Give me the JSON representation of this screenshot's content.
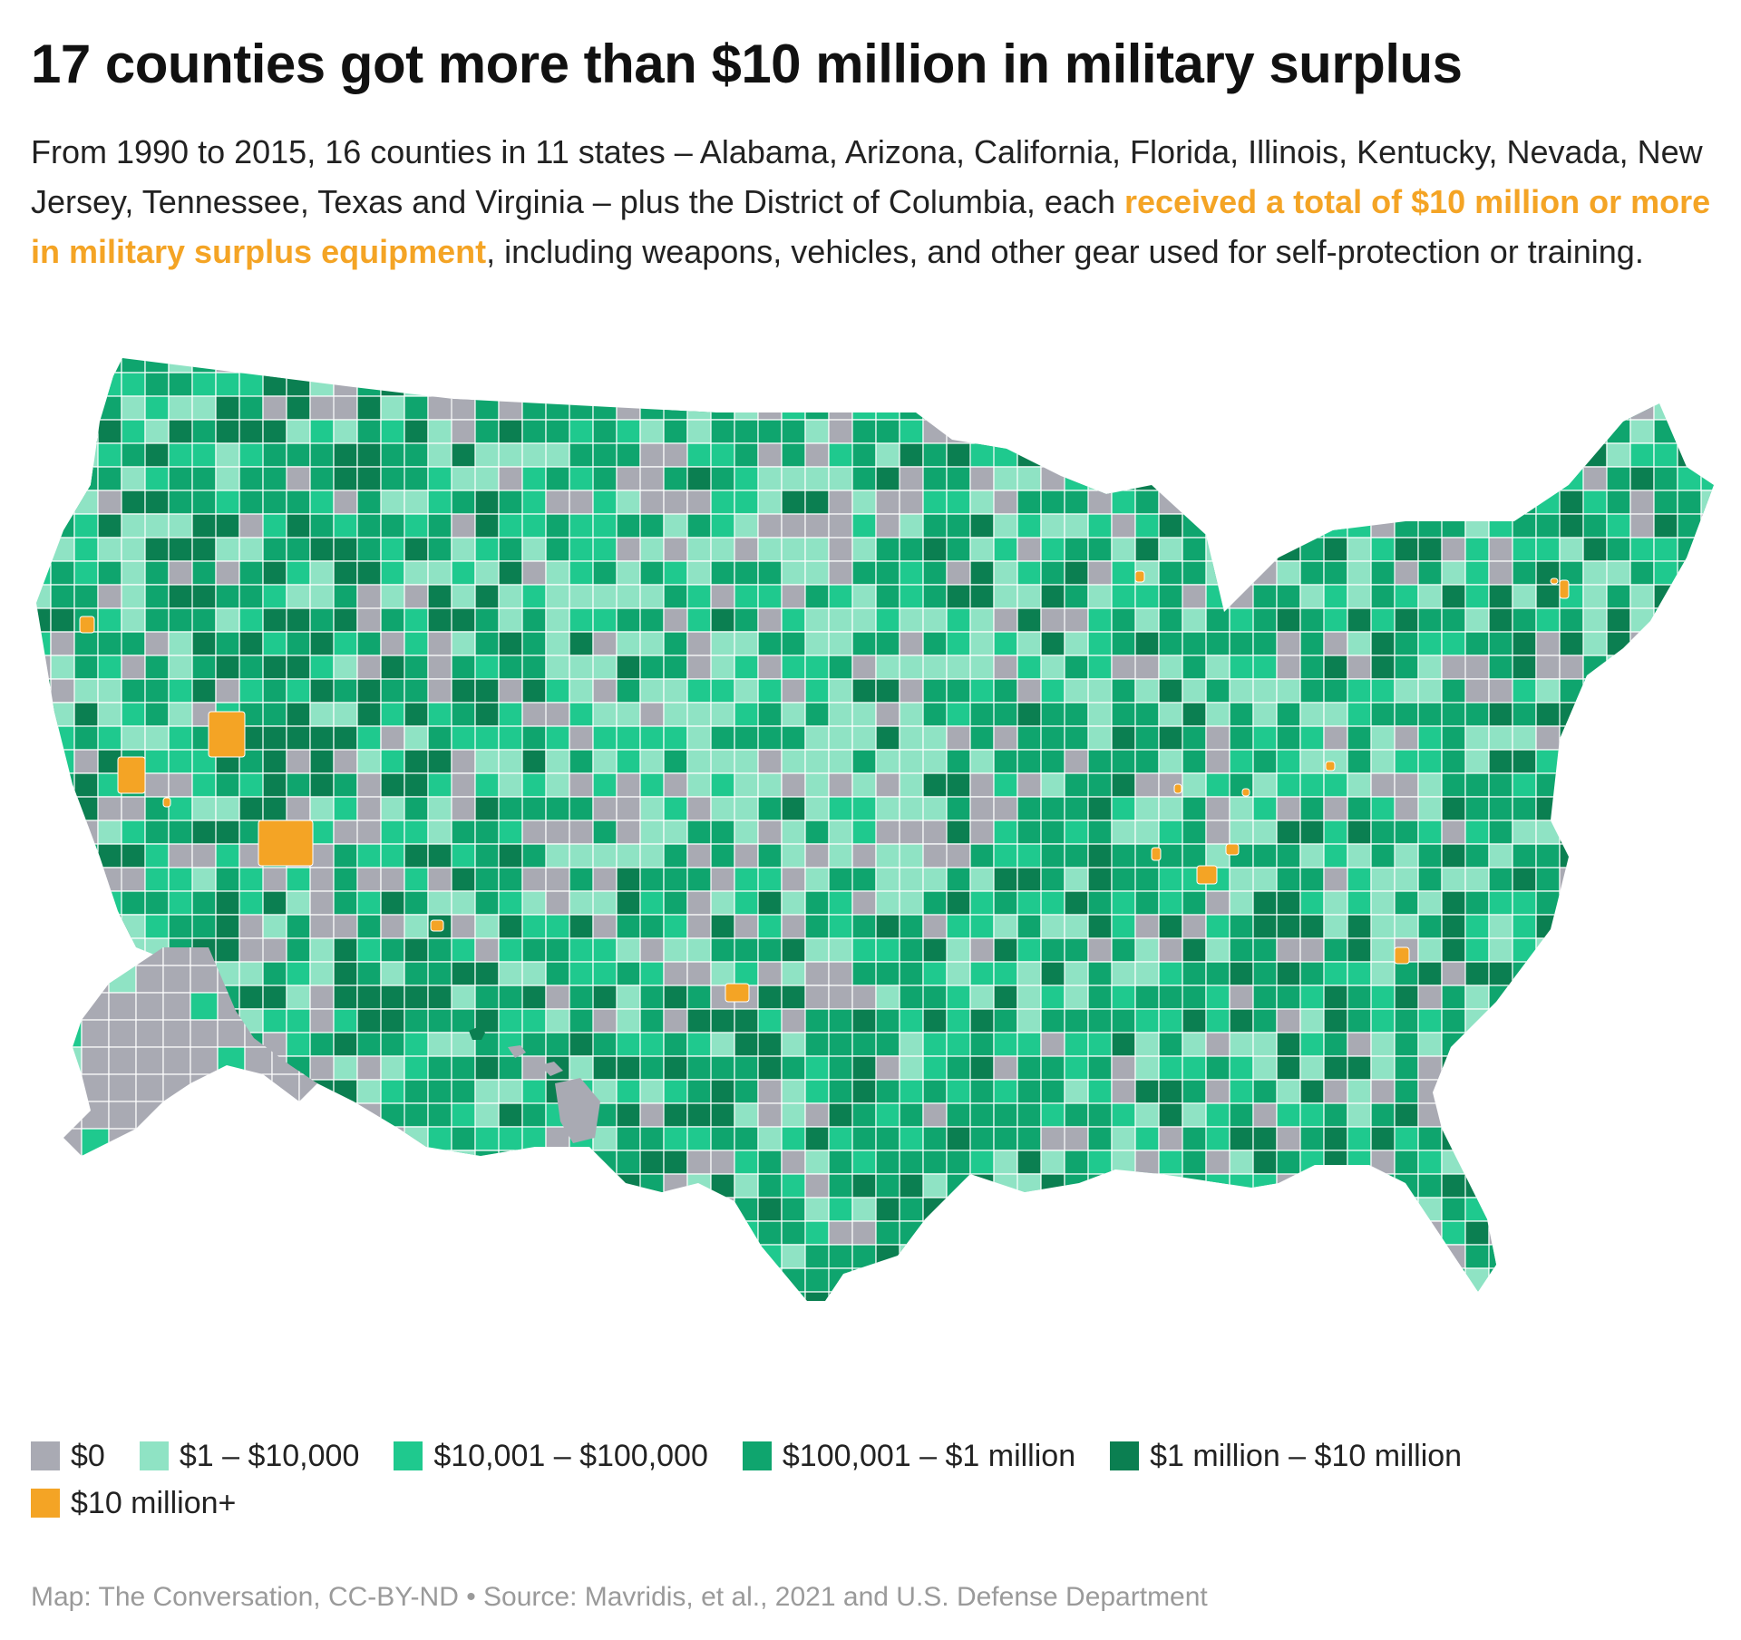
{
  "header": {
    "title": "17 counties got more than $10 million in military surplus",
    "subtitle_pre": "From 1990 to 2015, 16 counties in 11 states – Alabama, Arizona, California, Florida, Illinois, Kentucky, Nevada, New Jersey, Tennessee, Texas and Virginia – plus the District of Columbia, each ",
    "subtitle_highlight": "received a total of $10 million or more in military surplus equipment",
    "subtitle_post": ", including weapons, vehicles, and other gear used for self-protection or training."
  },
  "colors": {
    "zero": "#a9aab3",
    "c1": "#8fe3c4",
    "c2": "#1fc98e",
    "c3": "#0fa56e",
    "c4": "#0b7f51",
    "c5": "#f4a425",
    "border": "#ffffff"
  },
  "legend": {
    "items": [
      {
        "label": "$0",
        "color": "#a9aab3"
      },
      {
        "label": "$1 – $10,000",
        "color": "#8fe3c4"
      },
      {
        "label": "$10,001 – $100,000",
        "color": "#1fc98e"
      },
      {
        "label": "$100,001 – $1 million",
        "color": "#0fa56e"
      },
      {
        "label": "$1 million – $10 million",
        "color": "#0b7f51"
      },
      {
        "label": "$10 million+",
        "color": "#f4a425"
      }
    ]
  },
  "footer": {
    "credit": "Map: The Conversation, CC-BY-ND • Source: Mavridis, et al., 2021 and U.S. Defense Department"
  }
}
